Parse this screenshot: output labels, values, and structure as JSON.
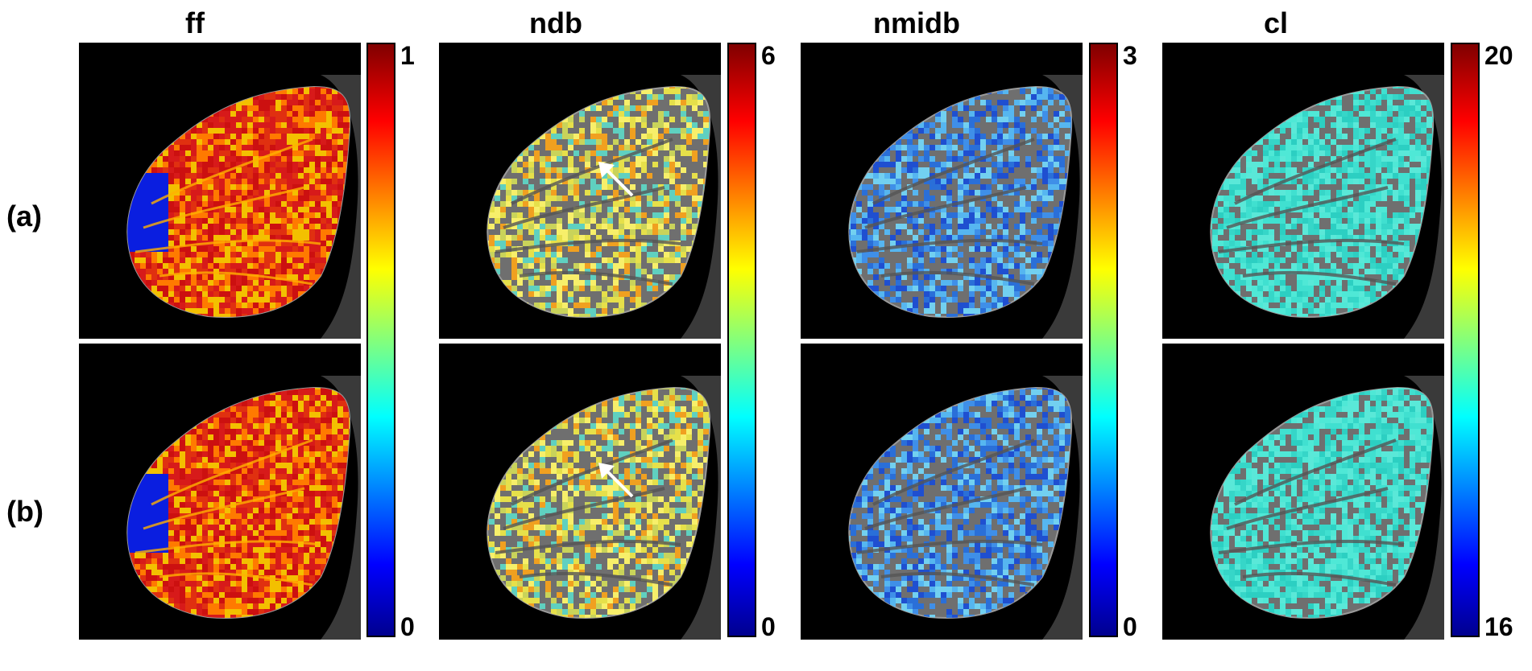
{
  "columns": [
    {
      "title": "ff",
      "cbar_max": "1",
      "cbar_min": "0",
      "tone": "red"
    },
    {
      "title": "ndb",
      "cbar_max": "6",
      "cbar_min": "0",
      "tone": "yellow"
    },
    {
      "title": "nmidb",
      "cbar_max": "3",
      "cbar_min": "0",
      "tone": "blue"
    },
    {
      "title": "cl",
      "cbar_max": "20",
      "cbar_min": "16",
      "tone": "cyan"
    }
  ],
  "rows": [
    {
      "label": "(a)"
    },
    {
      "label": "(b)"
    }
  ],
  "annotations": {
    "arrow_color": "#ffffff"
  },
  "colors": {
    "background": "#000000",
    "tissue_gray": "#6f6f6f"
  }
}
